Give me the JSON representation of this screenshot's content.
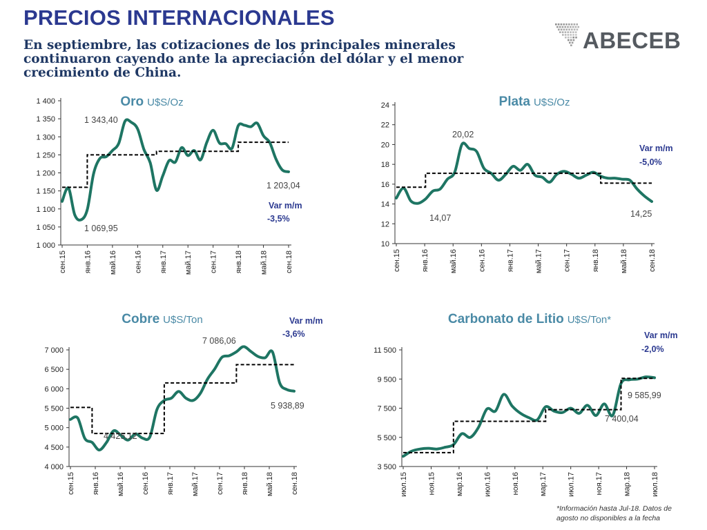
{
  "header": {
    "title": "PRECIOS INTERNACIONALES",
    "subtitle": "En septiembre, las cotizaciones de los principales minerales continuaron cayendo ante la apreciación del dólar y el menor crecimiento de China."
  },
  "logo": {
    "text": "ABECEB",
    "icon": "south-america-dots-icon"
  },
  "footnote": "*Información hasta Jul-18. Datos de agosto no disponibles a la fecha",
  "colors": {
    "line": "#1e7563",
    "dashed": "#000000",
    "title": "#4a8aa6",
    "var": "#2b3990",
    "label": "#444444",
    "axis": "#333333"
  },
  "chart_data": [
    {
      "id": "oro",
      "type": "line",
      "title": "Oro",
      "unit": "U$S/Oz",
      "ylim": [
        1000,
        1400
      ],
      "yticks": [
        1000,
        1050,
        1100,
        1150,
        1200,
        1250,
        1300,
        1350,
        1400
      ],
      "ytick_labels": [
        "1 000",
        "1 050",
        "1 100",
        "1 150",
        "1 200",
        "1 250",
        "1 300",
        "1 350",
        "1 400"
      ],
      "xticks": [
        "сен.15",
        "янв.16",
        "май.16",
        "сен.16",
        "янв.17",
        "май.17",
        "сен.17",
        "янв.18",
        "май.18",
        "сен.18"
      ],
      "series": [
        {
          "values": [
            1121,
            1158,
            1084,
            1069.95,
            1098,
            1198,
            1240,
            1245,
            1262,
            1282,
            1343.4,
            1340,
            1322,
            1265,
            1228,
            1152,
            1192,
            1234,
            1230,
            1270,
            1248,
            1262,
            1236,
            1285,
            1318,
            1283,
            1281,
            1268,
            1331,
            1332,
            1328,
            1338,
            1303,
            1284,
            1238,
            1208,
            1203.04
          ]
        },
        {
          "dashed": true,
          "values": [
            1160,
            1160,
            1160,
            1160,
            1250,
            1250,
            1250,
            1250,
            1250,
            1250,
            1250,
            1250,
            1250,
            1250,
            1250,
            1260,
            1260,
            1260,
            1260,
            1260,
            1260,
            1260,
            1260,
            1260,
            1260,
            1260,
            1260,
            1260,
            1285,
            1285,
            1285,
            1285,
            1285,
            1285,
            1285,
            1285,
            1285
          ]
        }
      ],
      "annotations": {
        "max": "1 343,40",
        "min": "1 069,95",
        "last": "1 203,04",
        "var_label": "Var m/m",
        "var_value": "-3,5%"
      }
    },
    {
      "id": "plata",
      "type": "line",
      "title": "Plata",
      "unit": "U$S/Oz",
      "ylim": [
        10,
        24
      ],
      "yticks": [
        10,
        12,
        14,
        16,
        18,
        20,
        22,
        24
      ],
      "ytick_labels": [
        "10",
        "12",
        "14",
        "16",
        "18",
        "20",
        "22",
        "24"
      ],
      "xticks": [
        "сен.15",
        "янв.16",
        "май.16",
        "сен.16",
        "янв.17",
        "май.17",
        "сен.17",
        "янв.18",
        "май.18",
        "сен.18"
      ],
      "series": [
        {
          "values": [
            14.6,
            15.6,
            14.3,
            14.07,
            14.5,
            15.3,
            15.5,
            16.5,
            17.2,
            20.02,
            19.6,
            19.3,
            17.6,
            17.1,
            16.4,
            17.0,
            17.8,
            17.4,
            18.0,
            16.9,
            16.7,
            16.2,
            17.0,
            17.3,
            17.0,
            16.6,
            16.9,
            17.2,
            16.8,
            16.6,
            16.6,
            16.5,
            16.4,
            15.5,
            14.8,
            14.25
          ]
        },
        {
          "dashed": true,
          "values": [
            15.7,
            15.7,
            15.7,
            15.7,
            17.1,
            17.1,
            17.1,
            17.1,
            17.1,
            17.1,
            17.1,
            17.1,
            17.1,
            17.1,
            17.1,
            17.1,
            17.1,
            17.1,
            17.1,
            17.1,
            17.1,
            17.1,
            17.1,
            17.1,
            17.1,
            17.1,
            17.1,
            17.1,
            16.1,
            16.1,
            16.1,
            16.1,
            16.1,
            16.1,
            16.1,
            16.1
          ]
        }
      ],
      "annotations": {
        "max": "20,02",
        "min": "14,07",
        "last": "14,25",
        "var_label": "Var m/m",
        "var_value": "-5,0%"
      }
    },
    {
      "id": "cobre",
      "type": "line",
      "title": "Cobre",
      "unit": "U$S/Ton",
      "ylim": [
        4000,
        7000
      ],
      "yticks": [
        4000,
        4500,
        5000,
        5500,
        6000,
        6500,
        7000
      ],
      "ytick_labels": [
        "4 000",
        "4 500",
        "5 000",
        "5 500",
        "6 000",
        "6 500",
        "7 000"
      ],
      "xticks": [
        "сен.15",
        "янв.16",
        "май.16",
        "сен.16",
        "янв.17",
        "май.17",
        "сен.17",
        "янв.18",
        "май.18",
        "сен.18"
      ],
      "series": [
        {
          "values": [
            5210,
            5250,
            4720,
            4620,
            4425.12,
            4620,
            4920,
            4800,
            4680,
            4840,
            4730,
            4760,
            5470,
            5700,
            5760,
            5930,
            5760,
            5700,
            5880,
            6250,
            6510,
            6810,
            6850,
            6950,
            7086.06,
            6960,
            6830,
            6800,
            6950,
            6150,
            5980,
            5938.89
          ]
        },
        {
          "dashed": true,
          "values": [
            5520,
            5520,
            5520,
            4850,
            4850,
            4850,
            4850,
            4850,
            4850,
            4850,
            4850,
            4850,
            4850,
            6150,
            6150,
            6150,
            6150,
            6150,
            6150,
            6150,
            6150,
            6150,
            6150,
            6620,
            6620,
            6620,
            6620,
            6620,
            6620,
            6620,
            6620,
            6620
          ]
        }
      ],
      "annotations": {
        "max": "7 086,06",
        "min": "4 425,12",
        "last": "5 938,89",
        "var_label": "Var m/m",
        "var_value": "-3,6%"
      }
    },
    {
      "id": "litio",
      "type": "line",
      "title": "Carbonato de Litio",
      "unit": "U$S/Ton*",
      "ylim": [
        3500,
        11500
      ],
      "yticks": [
        3500,
        5500,
        7500,
        9500,
        11500
      ],
      "ytick_labels": [
        "3 500",
        "5 500",
        "7 500",
        "9 500",
        "11 500"
      ],
      "xticks": [
        "июл.15",
        "ноя.15",
        "мар.16",
        "июл.16",
        "ноя.16",
        "мар.17",
        "июл.17",
        "ноя.17",
        "мар.18",
        "июл.18"
      ],
      "series": [
        {
          "values": [
            4200,
            4550,
            4700,
            4750,
            4700,
            4820,
            5000,
            5750,
            5500,
            6200,
            7450,
            7300,
            8450,
            7650,
            7150,
            6850,
            6700,
            7600,
            7300,
            7200,
            7500,
            7150,
            7700,
            7000,
            7800,
            7000,
            9200,
            9450,
            9500,
            9650,
            9585.99
          ]
        },
        {
          "dashed": true,
          "values": [
            4450,
            4450,
            4450,
            4450,
            4450,
            4450,
            6600,
            6600,
            6600,
            6600,
            6600,
            6600,
            6600,
            6600,
            6600,
            6600,
            6600,
            7400,
            7400,
            7400,
            7400,
            7400,
            7400,
            7400,
            7400,
            7400,
            9550,
            9550,
            9550,
            9550,
            9550
          ]
        }
      ],
      "annotations": {
        "mid": "7 400,04",
        "last": "9 585,99",
        "var_label": "Var m/m",
        "var_value": "-2,0%"
      }
    }
  ]
}
